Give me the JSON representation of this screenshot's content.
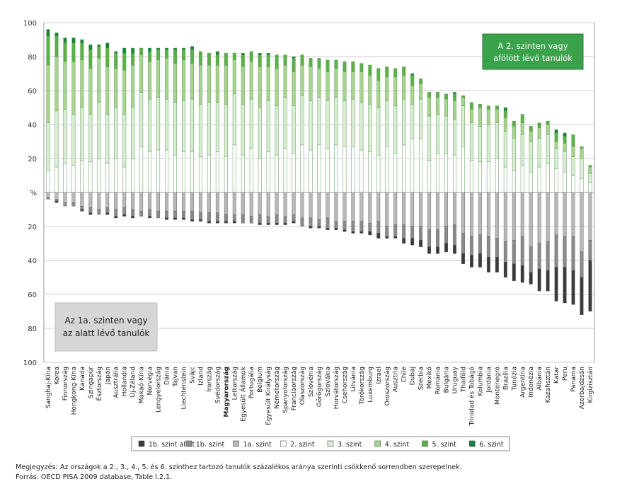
{
  "chart_data": {
    "type": "bar",
    "stacked": "diverging",
    "categories": [
      "Sanghaj-Kína",
      "Korea",
      "Finnország",
      "Hongkong-Kína",
      "Kanada",
      "Szingapúr",
      "Észtország",
      "Japán",
      "Ausztrália",
      "Hollandia",
      "Új-Zéland",
      "Makaó-Kína",
      "Norvégia",
      "Lengyelország",
      "Dánia",
      "Tajvan",
      "Liechtenstein",
      "Svájc",
      "Izland",
      "Írország",
      "Svédország",
      "Magyarország",
      "Lettország",
      "Egyesült Államok",
      "Portugália",
      "Belgium",
      "Egyesült Királyság",
      "Németország",
      "Spanyolország",
      "Franciaország",
      "Olaszország",
      "Szlovénia",
      "Görögország",
      "Szlovákia",
      "Horvátország",
      "Csehország",
      "Litvánia",
      "Törökország",
      "Luxemburg",
      "Izrael",
      "Oroszország",
      "Ausztria",
      "Chile",
      "Dubaj",
      "Szerbia",
      "Mexikó",
      "Románia",
      "Bulgária",
      "Uruguay",
      "Thaiföld",
      "Trinidad és Tobágó",
      "Kolumbia",
      "Jordánia",
      "Montenegró",
      "Brazília",
      "Tunézia",
      "Argentína",
      "Indonézia",
      "Albánia",
      "Kazahsztán",
      "Katar",
      "Peru",
      "Panama",
      "Azerbajdzsán",
      "Kirgizisztán"
    ],
    "highlight_category": "Magyarország",
    "above_series": [
      {
        "name": "2. szint",
        "color": "#ffffff",
        "values": [
          13,
          15,
          17,
          16,
          19,
          18,
          20,
          17,
          20,
          15,
          20,
          27,
          24,
          25,
          25,
          22,
          24,
          24,
          21,
          22,
          24,
          21,
          28,
          22,
          26,
          20,
          24,
          22,
          26,
          23,
          28,
          25,
          28,
          26,
          28,
          27,
          27,
          25,
          24,
          22,
          27,
          23,
          28,
          32,
          32,
          19,
          23,
          23,
          22,
          27,
          19,
          18,
          18,
          20,
          15,
          13,
          16,
          12,
          15,
          17,
          14,
          12,
          10,
          8,
          6
        ]
      },
      {
        "name": "3. szint",
        "color": "#d9edd3",
        "values": [
          28,
          33,
          32,
          30,
          31,
          28,
          33,
          29,
          30,
          31,
          30,
          32,
          31,
          31,
          30,
          31,
          30,
          31,
          31,
          31,
          29,
          31,
          30,
          30,
          29,
          30,
          30,
          29,
          30,
          28,
          29,
          29,
          28,
          28,
          28,
          27,
          28,
          28,
          28,
          28,
          27,
          28,
          27,
          20,
          23,
          26,
          23,
          22,
          21,
          24,
          22,
          21,
          22,
          21,
          21,
          19,
          18,
          18,
          17,
          17,
          12,
          12,
          11,
          12,
          5
        ]
      },
      {
        "name": "4. szint",
        "color": "#a9d48f",
        "values": [
          34,
          32,
          28,
          31,
          28,
          27,
          26,
          28,
          23,
          26,
          25,
          22,
          22,
          22,
          24,
          23,
          24,
          21,
          23,
          22,
          22,
          23,
          20,
          22,
          22,
          24,
          20,
          22,
          19,
          20,
          18,
          20,
          17,
          17,
          17,
          17,
          16,
          18,
          17,
          16,
          14,
          17,
          14,
          11,
          9,
          11,
          10,
          10,
          11,
          5,
          8,
          11,
          9,
          8,
          8,
          7,
          7,
          6,
          6,
          6,
          4,
          5,
          6,
          6,
          4
        ]
      },
      {
        "name": "5. szint",
        "color": "#5bb146",
        "values": [
          17,
          12,
          11,
          11,
          10,
          11,
          7,
          11,
          9,
          10,
          7,
          4,
          6,
          6,
          5,
          8,
          6,
          8,
          8,
          7,
          6,
          7,
          4,
          7,
          6,
          7,
          7,
          8,
          6,
          8,
          6,
          5,
          6,
          7,
          5,
          6,
          6,
          5,
          6,
          7,
          6,
          5,
          5,
          6,
          3,
          3,
          3,
          3,
          4,
          1,
          4,
          2,
          2,
          2,
          4,
          3,
          5,
          3,
          3,
          2,
          5,
          4,
          7,
          1,
          1
        ]
      },
      {
        "name": "6. szint",
        "color": "#17823c",
        "values": [
          4,
          2,
          3,
          3,
          2,
          3,
          1,
          3,
          1,
          3,
          3,
          0,
          2,
          1,
          1,
          1,
          1,
          2,
          0,
          0,
          2,
          0,
          0,
          1,
          0,
          1,
          1,
          0,
          0,
          1,
          0,
          0,
          0,
          0,
          0,
          0,
          0,
          0,
          0,
          0,
          0,
          0,
          0,
          1,
          0,
          0,
          0,
          0,
          1,
          0,
          0,
          0,
          0,
          0,
          2,
          0,
          0,
          0,
          0,
          0,
          2,
          2,
          0,
          0,
          0
        ]
      }
    ],
    "below_series": [
      {
        "name": "1a. szint",
        "color": "#b9b9b9",
        "values": [
          3,
          4,
          6,
          6,
          8,
          9,
          10,
          9,
          10,
          9,
          10,
          11,
          10,
          11,
          11,
          11,
          11,
          11,
          12,
          12,
          12,
          13,
          13,
          13,
          14,
          13,
          14,
          13,
          14,
          13,
          15,
          15,
          16,
          15,
          17,
          17,
          17,
          17,
          18,
          17,
          20,
          19,
          19,
          20,
          20,
          22,
          22,
          20,
          19,
          24,
          26,
          25,
          26,
          27,
          29,
          28,
          26,
          32,
          30,
          29,
          25,
          26,
          26,
          35,
          28
        ]
      },
      {
        "name": "1b. szint",
        "color": "#8a8a8a",
        "values": [
          1,
          1,
          2,
          2,
          2,
          3,
          3,
          3,
          4,
          4,
          4,
          3,
          4,
          4,
          4,
          4,
          4,
          5,
          4,
          5,
          5,
          4,
          4,
          5,
          4,
          5,
          4,
          5,
          4,
          4,
          5,
          5,
          4,
          6,
          4,
          5,
          6,
          6,
          5,
          7,
          6,
          7,
          8,
          7,
          8,
          10,
          10,
          10,
          12,
          12,
          11,
          11,
          12,
          11,
          12,
          14,
          17,
          15,
          15,
          17,
          19,
          18,
          20,
          15,
          12
        ]
      },
      {
        "name": "1b. szint alatt",
        "color": "#3a3a3a",
        "values": [
          0,
          1,
          0,
          0,
          1,
          1,
          0,
          1,
          1,
          1,
          1,
          0,
          1,
          0,
          1,
          1,
          1,
          1,
          1,
          1,
          1,
          1,
          1,
          0,
          0,
          1,
          1,
          1,
          1,
          1,
          0,
          1,
          1,
          1,
          1,
          1,
          1,
          1,
          2,
          3,
          1,
          1,
          3,
          4,
          4,
          4,
          4,
          5,
          5,
          6,
          7,
          8,
          9,
          9,
          9,
          10,
          10,
          7,
          13,
          12,
          20,
          21,
          20,
          22,
          30
        ]
      }
    ],
    "yaxis": {
      "range": [
        -100,
        100
      ],
      "ticks": [
        "100",
        "80",
        "60",
        "40",
        "20",
        "%",
        "20",
        "40",
        "60",
        "80",
        "100"
      ]
    },
    "grid": true,
    "legend": {
      "placement": "bottom",
      "items": [
        "1b. szint alatt",
        "1b. szint",
        "1a. szint",
        "2. szint",
        "3. szint",
        "4. szint",
        "5. szint",
        "6. szint"
      ]
    },
    "annotations": {
      "above": {
        "line1": "A 2. szinten vagy",
        "line2": "afölött lévő tanulók",
        "bg": "#3aa24b",
        "color": "#ffffff"
      },
      "below": {
        "line1": "Az 1a. szinten vagy",
        "line2": "az alatt lévő tanulók",
        "bg": "#d6d6d6",
        "color": "#222222"
      }
    }
  },
  "notes": {
    "line1": "Megjegyzés: Az országok a 2., 3., 4., 5. és 6. szinthez tartozó tanulók százalékos aránya szerinti csökkenő sorrendben szerepelnek.",
    "line2": "Forrás: OECD PISA 2009 database, Table I.2.1."
  }
}
